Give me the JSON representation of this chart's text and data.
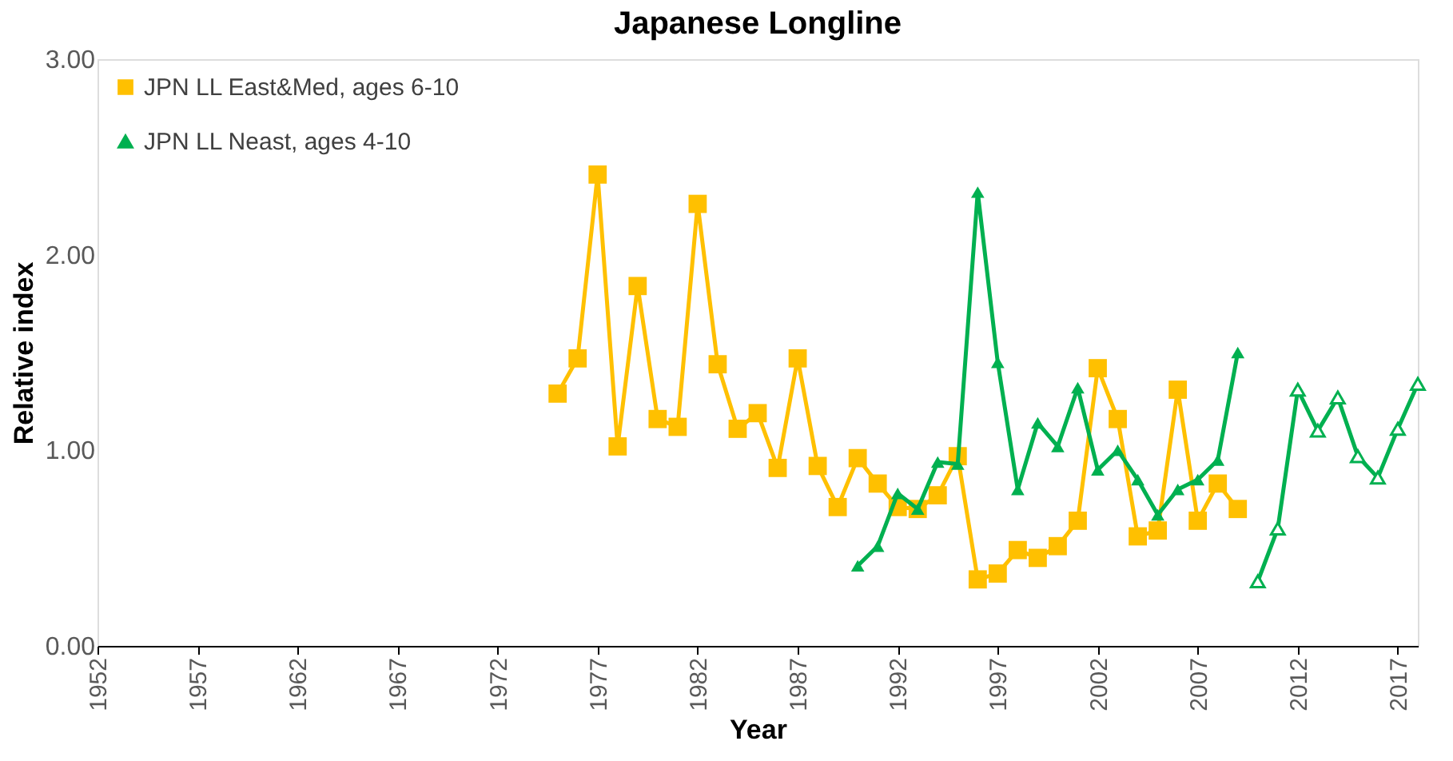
{
  "chart_data": {
    "type": "line",
    "title": "Japanese Longline",
    "xlabel": "Year",
    "ylabel": "Relative index",
    "xlim": [
      1952,
      2018
    ],
    "xticks": [
      1952,
      1957,
      1962,
      1967,
      1972,
      1977,
      1982,
      1987,
      1992,
      1997,
      2002,
      2007,
      2012,
      2017
    ],
    "ylim": [
      0,
      3
    ],
    "yticks": [
      {
        "value": 0,
        "label": "0.00"
      },
      {
        "value": 1,
        "label": "1.00"
      },
      {
        "value": 2,
        "label": "2.00"
      },
      {
        "value": 3,
        "label": "3.00"
      }
    ],
    "grid": false,
    "legend": "top left",
    "line_style": "solid",
    "series": [
      {
        "name": "JPN LL East&Med, ages 6-10",
        "color": "#ffc000",
        "marker": "square",
        "x": [
          1975,
          1976,
          1977,
          1978,
          1979,
          1980,
          1981,
          1982,
          1983,
          1984,
          1985,
          1986,
          1987,
          1988,
          1989,
          1990,
          1991,
          1992,
          1993,
          1994,
          1995,
          1996,
          1997,
          1998,
          1999,
          2000,
          2001,
          2002,
          2003,
          2004,
          2005,
          2006,
          2007,
          2008,
          2009
        ],
        "values": [
          1.29,
          1.47,
          2.41,
          1.02,
          1.84,
          1.16,
          1.12,
          2.26,
          1.44,
          1.11,
          1.19,
          0.91,
          1.47,
          0.92,
          0.71,
          0.96,
          0.83,
          0.71,
          0.7,
          0.77,
          0.97,
          0.34,
          0.37,
          0.49,
          0.45,
          0.51,
          0.64,
          1.42,
          1.16,
          0.56,
          0.59,
          1.31,
          0.64,
          0.83,
          0.7
        ]
      },
      {
        "name": "JPN LL Neast, ages 4-10",
        "color": "#00b050",
        "marker": "triangle",
        "x": [
          1990,
          1991,
          1992,
          1993,
          1994,
          1995,
          1996,
          1997,
          1998,
          1999,
          2000,
          2001,
          2002,
          2003,
          2004,
          2005,
          2006,
          2007,
          2008,
          2009
        ],
        "values": [
          0.41,
          0.51,
          0.78,
          0.7,
          0.94,
          0.93,
          2.32,
          1.45,
          0.8,
          1.14,
          1.02,
          1.32,
          0.9,
          1.0,
          0.85,
          0.67,
          0.8,
          0.85,
          0.95,
          1.5
        ]
      },
      {
        "color": "#00b050",
        "marker": "triangle",
        "x": [
          2010,
          2011,
          2012,
          2013,
          2014,
          2015,
          2016,
          2017,
          2018
        ],
        "values": [
          0.33,
          0.6,
          1.31,
          1.1,
          1.27,
          0.97,
          0.86,
          1.11,
          1.34
        ]
      }
    ]
  }
}
